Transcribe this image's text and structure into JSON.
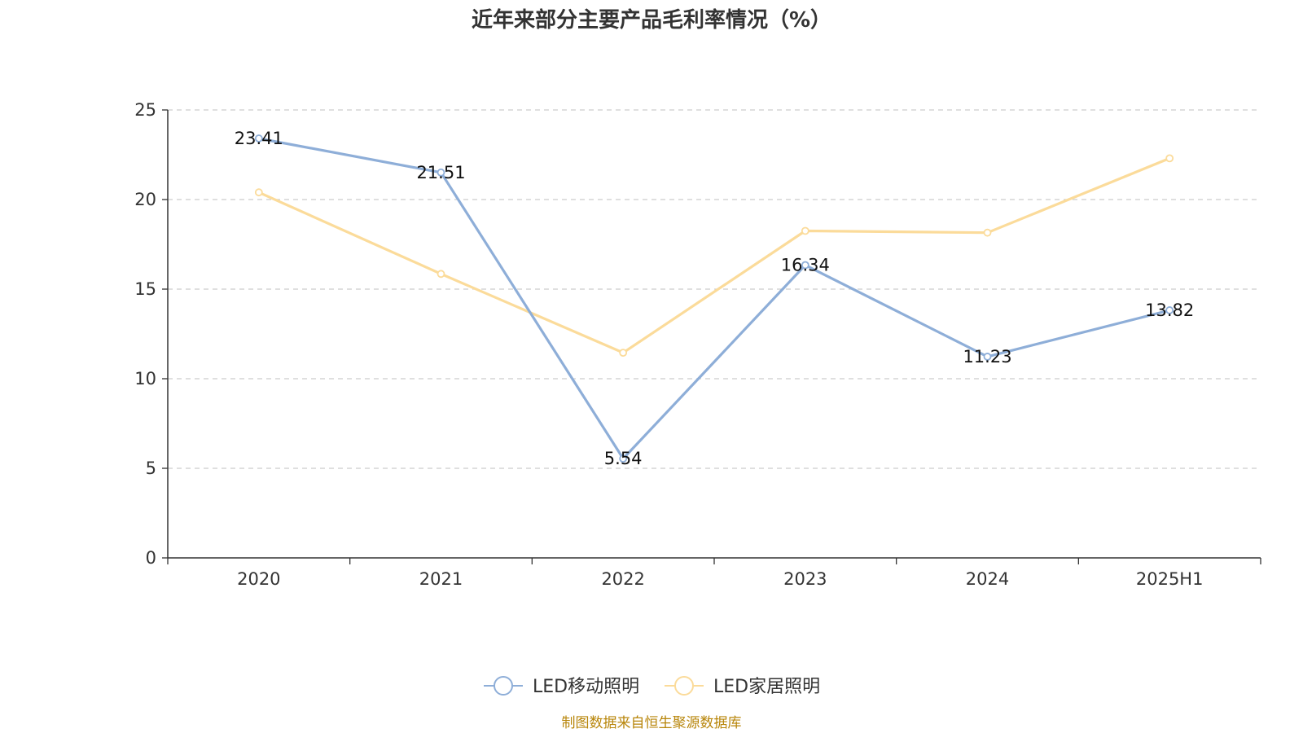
{
  "chart_data": {
    "type": "line",
    "title": "近年来部分主要产品毛利率情况（%）",
    "categories": [
      "2020",
      "2021",
      "2022",
      "2023",
      "2024",
      "2025H1"
    ],
    "ylim": [
      0,
      25
    ],
    "yticks": [
      "0",
      "5",
      "10",
      "15",
      "20",
      "25"
    ],
    "grid": true,
    "legend_position": "bottom",
    "series": [
      {
        "name": "LED移动照明",
        "color": "#8eaed8",
        "values": [
          23.41,
          21.51,
          5.54,
          16.34,
          11.23,
          13.82
        ],
        "labels": [
          "23.41",
          "21.51",
          "5.54",
          "16.34",
          "11.23",
          "13.82"
        ]
      },
      {
        "name": "LED家居照明",
        "color": "#fbdb9a",
        "values": [
          20.4,
          15.85,
          11.45,
          18.25,
          18.15,
          22.3
        ]
      }
    ],
    "source": "制图数据来自恒生聚源数据库"
  }
}
